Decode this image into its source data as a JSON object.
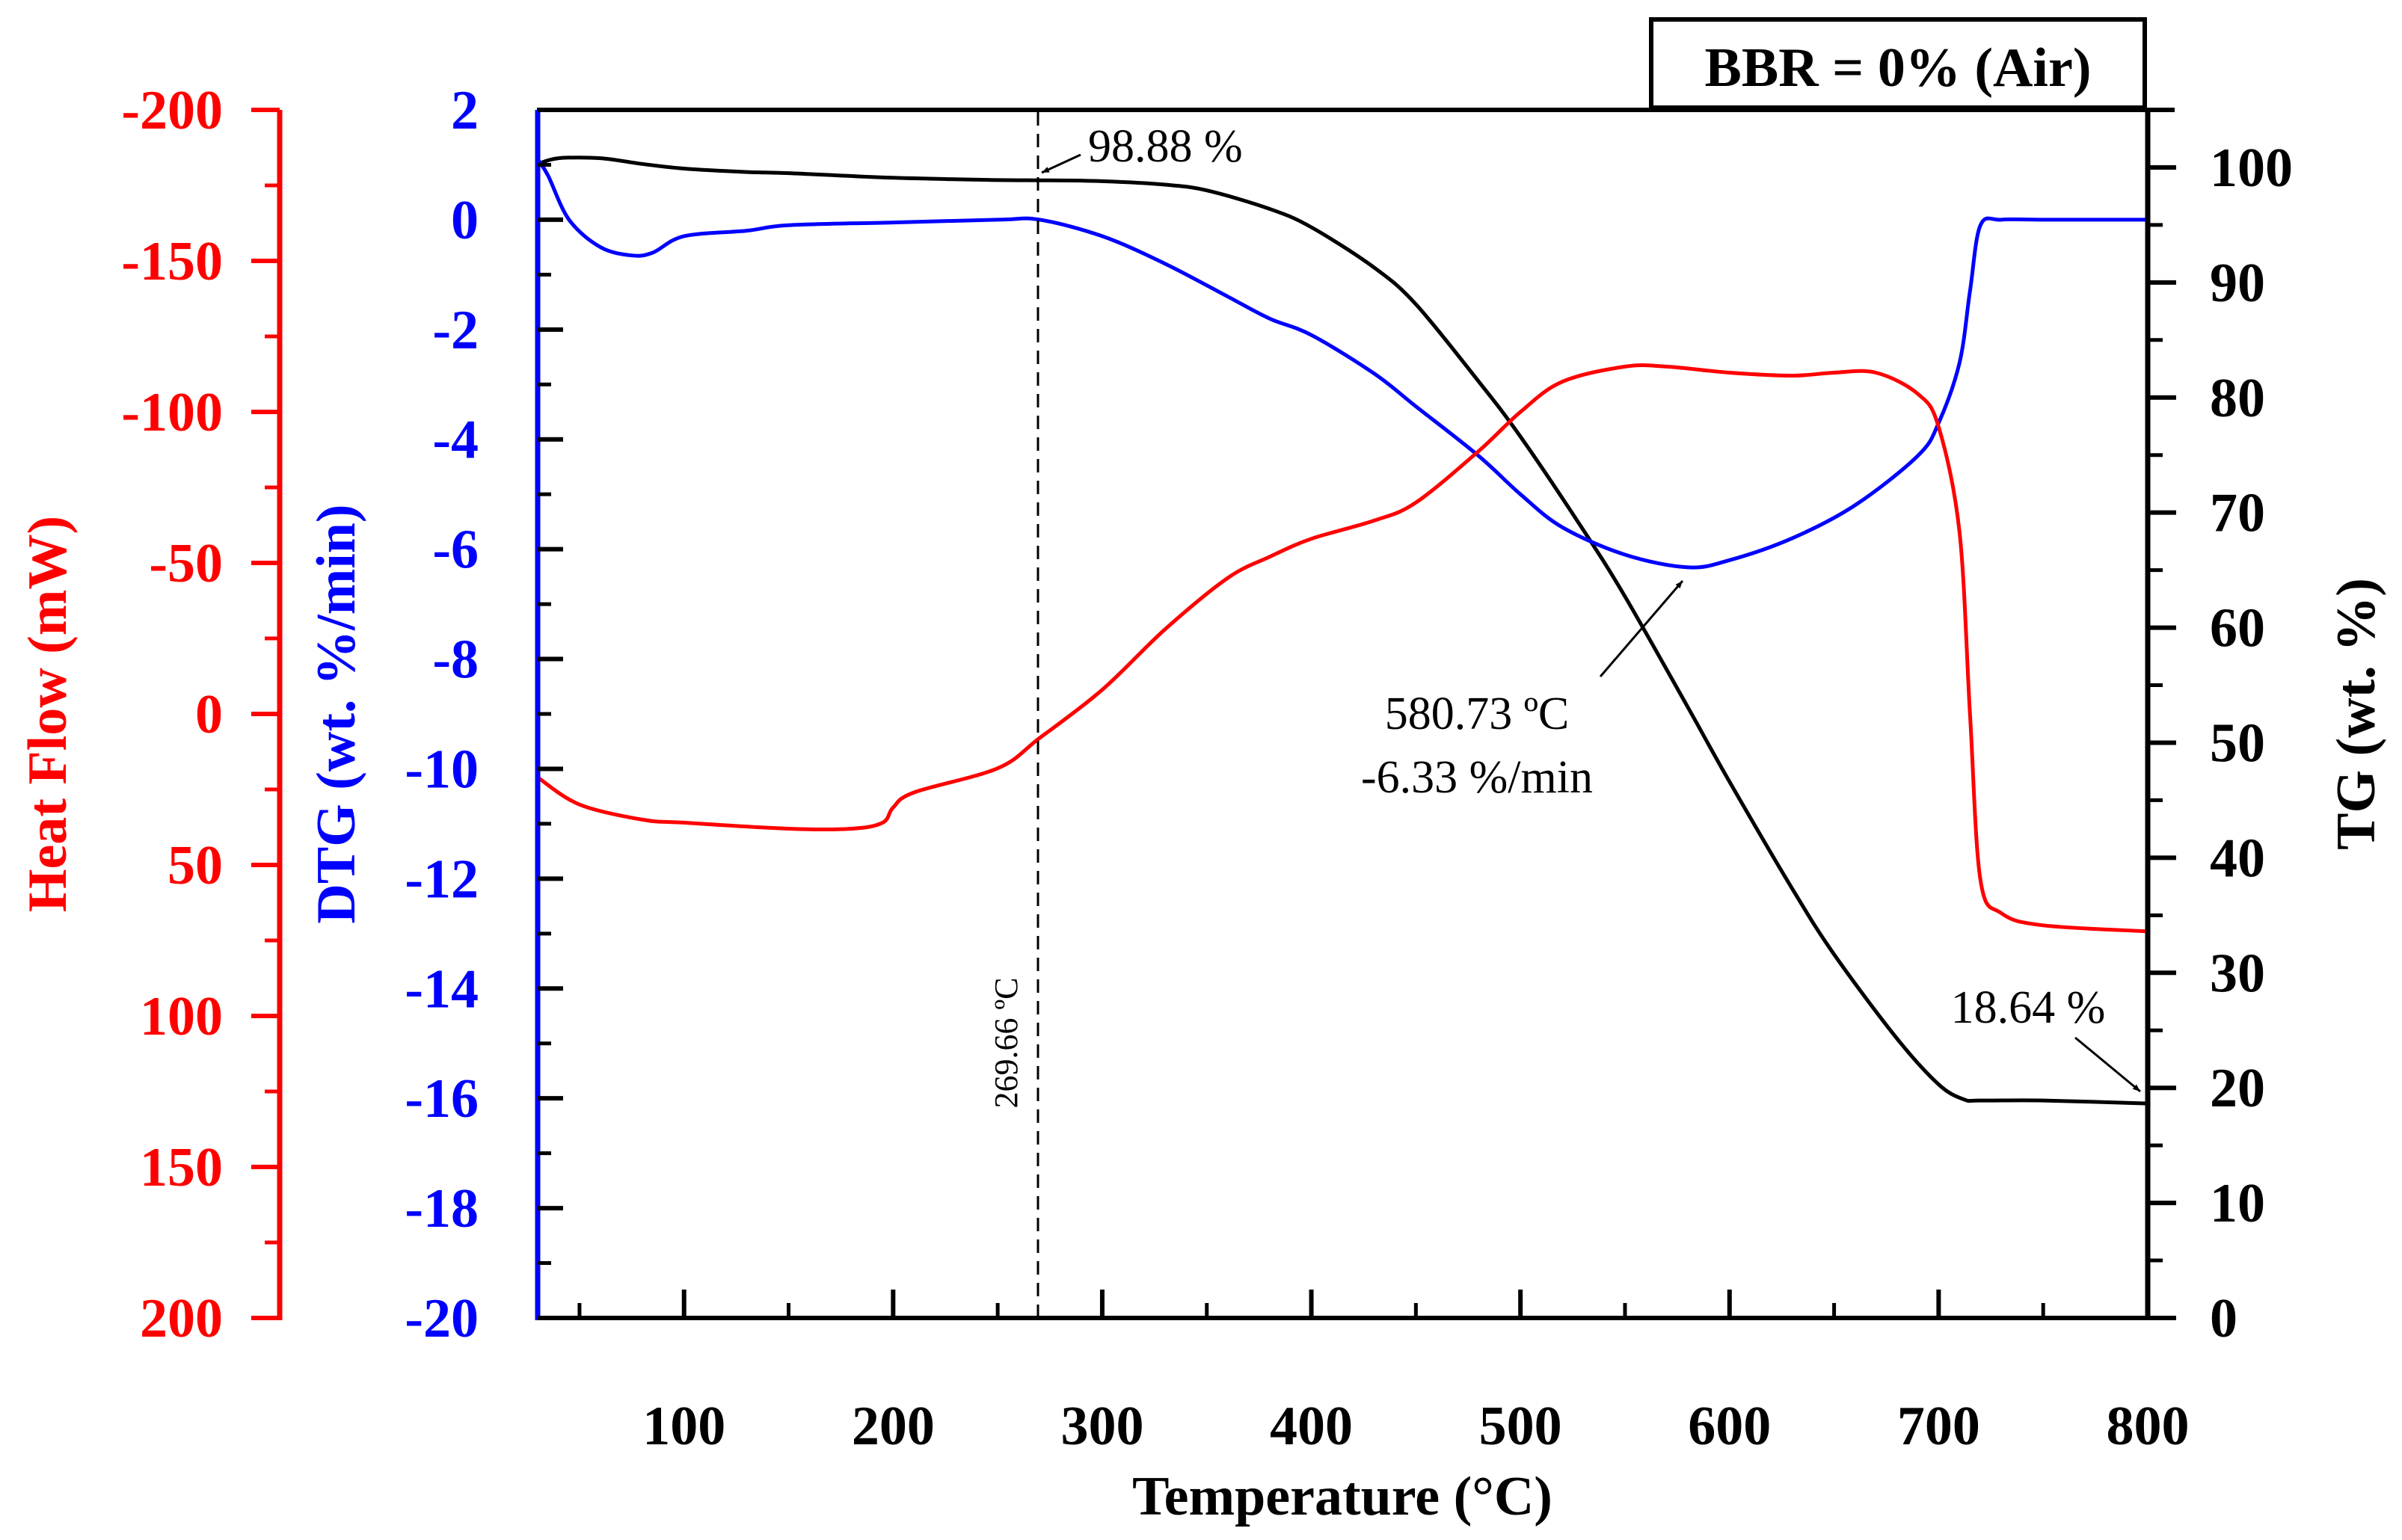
{
  "chart_data": {
    "type": "line",
    "title_box": "BBR = 0% (Air)",
    "xlabel": "Temperature (°C)",
    "xlim": [
      30,
      800
    ],
    "xticks": [
      100,
      200,
      300,
      400,
      500,
      600,
      700,
      800
    ],
    "axes": {
      "dtg": {
        "label": "DTG (wt. %/min)",
        "color": "#0000ff",
        "lim": [
          -20,
          2
        ],
        "ticks": [
          2,
          0,
          -2,
          -4,
          -6,
          -8,
          -10,
          -12,
          -14,
          -16,
          -18,
          -20
        ]
      },
      "heat": {
        "label": "Heat Flow (mW)",
        "color": "#ff0000",
        "lim": [
          200,
          -200
        ],
        "ticks": [
          -200,
          -150,
          -100,
          -50,
          0,
          50,
          100,
          150,
          200
        ]
      },
      "tg": {
        "label": "TG (wt. %)",
        "color": "#000000",
        "lim": [
          0,
          105
        ],
        "ticks": [
          0,
          10,
          20,
          30,
          40,
          50,
          60,
          70,
          80,
          90,
          100
        ]
      }
    },
    "series": [
      {
        "name": "TG",
        "axis": "tg",
        "color": "#000000",
        "x": [
          30,
          40,
          60,
          80,
          100,
          130,
          150,
          200,
          250,
          270,
          300,
          330,
          350,
          380,
          400,
          430,
          450,
          480,
          500,
          530,
          550,
          580,
          600,
          630,
          650,
          680,
          700,
          712,
          720,
          750,
          800
        ],
        "y": [
          100.3,
          100.8,
          100.8,
          100.3,
          99.9,
          99.6,
          99.5,
          99.1,
          98.9,
          98.88,
          98.8,
          98.5,
          98.0,
          96.4,
          94.8,
          91.3,
          88.1,
          81.4,
          76.6,
          68.5,
          62.7,
          53.1,
          46.6,
          37.3,
          31.6,
          24.3,
          20.3,
          19.0,
          18.9,
          18.9,
          18.64
        ]
      },
      {
        "name": "DTG",
        "axis": "dtg",
        "color": "#0000ff",
        "x": [
          30,
          35,
          45,
          60,
          75,
          85,
          100,
          130,
          150,
          200,
          250,
          270,
          300,
          330,
          360,
          380,
          400,
          430,
          450,
          480,
          500,
          520,
          550,
          580,
          600,
          630,
          660,
          690,
          700,
          710,
          715,
          720,
          730,
          750,
          800
        ],
        "y": [
          1.1,
          0.8,
          0.0,
          -0.5,
          -0.65,
          -0.6,
          -0.3,
          -0.2,
          -0.1,
          -0.05,
          0.0,
          0.0,
          -0.3,
          -0.8,
          -1.4,
          -1.8,
          -2.1,
          -2.8,
          -3.4,
          -4.3,
          -5.0,
          -5.6,
          -6.1,
          -6.33,
          -6.2,
          -5.8,
          -5.2,
          -4.3,
          -3.7,
          -2.6,
          -1.3,
          -0.1,
          0.0,
          0.0,
          0.0
        ]
      },
      {
        "name": "Heat Flow",
        "axis": "heat",
        "color": "#ff0000",
        "x": [
          30,
          50,
          80,
          100,
          150,
          180,
          195,
          200,
          210,
          250,
          270,
          300,
          330,
          360,
          380,
          400,
          430,
          450,
          480,
          500,
          520,
          550,
          570,
          600,
          630,
          650,
          670,
          690,
          700,
          710,
          715,
          720,
          730,
          750,
          800
        ],
        "y": [
          21,
          30,
          35,
          36,
          38,
          38,
          36,
          31,
          26,
          18,
          8,
          -8,
          -28,
          -45,
          -52,
          -58,
          -64,
          -70,
          -87,
          -100,
          -110,
          -115,
          -115,
          -113,
          -112,
          -113,
          -113,
          -106,
          -95,
          -60,
          0,
          55,
          66,
          70,
          72
        ]
      }
    ],
    "annotations": {
      "vline_label": "269.66 ºC",
      "start_mass": "98.88 %",
      "peak_temp": "580.73 ºC",
      "peak_rate": "-6.33 %/min",
      "final_mass": "18.64 %"
    }
  }
}
